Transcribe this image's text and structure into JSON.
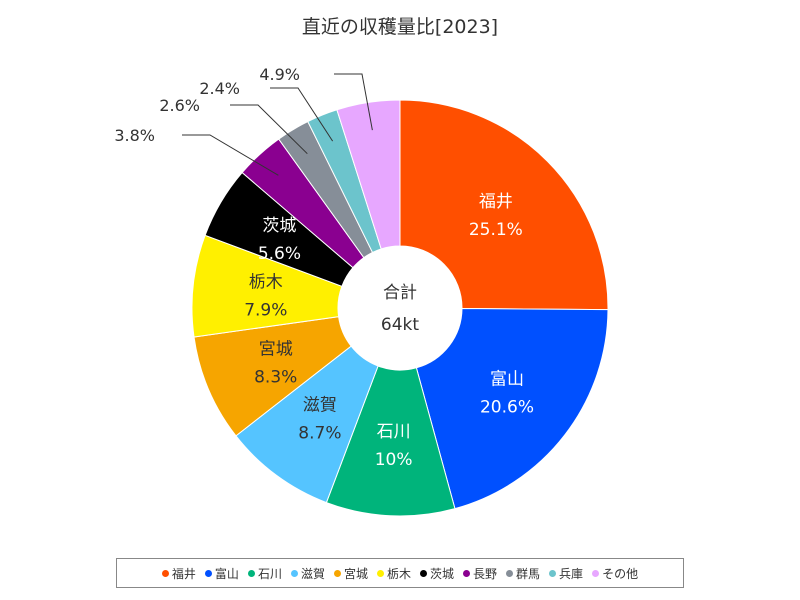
{
  "chart_data": {
    "type": "pie",
    "title": "直近の収穫量比[2023]",
    "center_label": {
      "line1": "合計",
      "line2": "64kt"
    },
    "slices": [
      {
        "name": "福井",
        "value": 25.1,
        "label": "25.1%",
        "color": "#ff4f00"
      },
      {
        "name": "富山",
        "value": 20.6,
        "label": "20.6%",
        "color": "#0050ff"
      },
      {
        "name": "石川",
        "value": 10.0,
        "label": "10%",
        "color": "#00b47b"
      },
      {
        "name": "滋賀",
        "value": 8.7,
        "label": "8.7%",
        "color": "#55c4ff"
      },
      {
        "name": "宮城",
        "value": 8.3,
        "label": "8.3%",
        "color": "#f6a500"
      },
      {
        "name": "栃木",
        "value": 7.9,
        "label": "7.9%",
        "color": "#fff000"
      },
      {
        "name": "茨城",
        "value": 5.6,
        "label": "5.6%",
        "color": "#000000"
      },
      {
        "name": "長野",
        "value": 3.8,
        "label": "3.8%",
        "color": "#8a0090"
      },
      {
        "name": "群馬",
        "value": 2.6,
        "label": "2.6%",
        "color": "#868e98"
      },
      {
        "name": "兵庫",
        "value": 2.4,
        "label": "2.4%",
        "color": "#6cc4cc"
      },
      {
        "name": "その他",
        "value": 4.9,
        "label": "4.9%",
        "color": "#e7a7ff"
      }
    ],
    "legend_position": "bottom"
  }
}
